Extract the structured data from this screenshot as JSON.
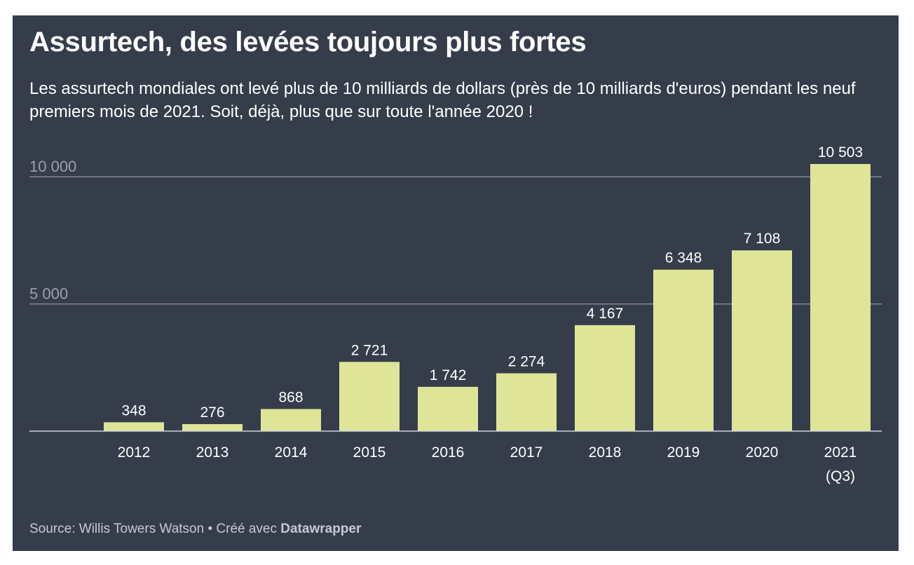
{
  "title": "Assurtech, des levées toujours plus fortes",
  "subtitle": "Les assurtech mondiales ont levé plus de 10 milliards de dollars (près de 10 milliards d'euros) pendant les neuf premiers mois de 2021. Soit, déjà, plus que sur toute l'année 2020 !",
  "source": {
    "text": "Source: Willis Towers Watson • Créé avec ",
    "brand": "Datawrapper"
  },
  "chart_data": {
    "type": "bar",
    "title": "Assurtech, des levées toujours plus fortes",
    "xlabel": "",
    "ylabel": "",
    "ylim": [
      0,
      10503
    ],
    "grid": true,
    "yticks": [
      {
        "value": 5000,
        "label": "5 000"
      },
      {
        "value": 10000,
        "label": "10 000"
      }
    ],
    "categories": [
      [
        "2012"
      ],
      [
        "2013"
      ],
      [
        "2014"
      ],
      [
        "2015"
      ],
      [
        "2016"
      ],
      [
        "2017"
      ],
      [
        "2018"
      ],
      [
        "2019"
      ],
      [
        "2020"
      ],
      [
        "2021",
        "(Q3)"
      ]
    ],
    "values": [
      348,
      276,
      868,
      2721,
      1742,
      2274,
      4167,
      6348,
      7108,
      10503
    ],
    "value_labels": [
      "348",
      "276",
      "868",
      "2 721",
      "1 742",
      "2 274",
      "4 167",
      "6 348",
      "7 108",
      "10 503"
    ],
    "bar_color": "#dfe598",
    "grid_color": "#838894",
    "text_color": "#ffffff",
    "tick_label_color": "#9ba0aa"
  }
}
